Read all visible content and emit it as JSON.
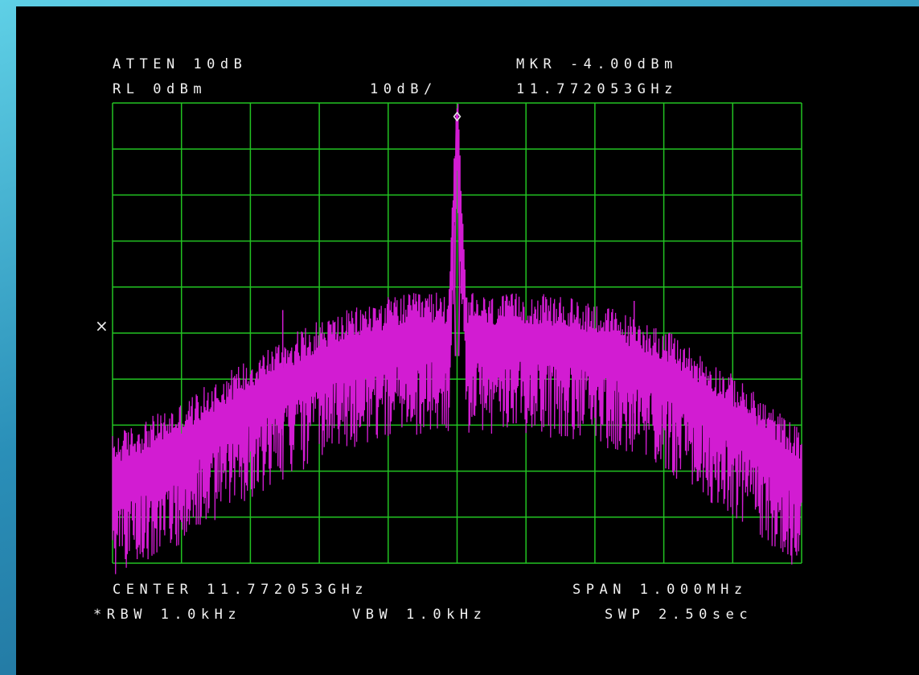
{
  "analyzer": {
    "atten": "ATTEN 10dB",
    "ref_level": "RL 0dBm",
    "scale": "10dB/",
    "marker_level": "MKR -4.00dBm",
    "marker_freq": "11.772053GHz",
    "ref_marker": "×",
    "center": "CENTER 11.772053GHz",
    "span": "SPAN 1.000MHz",
    "rbw": "*RBW 1.0kHz",
    "vbw": "VBW 1.0kHz",
    "sweep": "SWP 2.50sec"
  },
  "colors": {
    "background": "#000000",
    "grid": "#22c322",
    "trace": "#d21cd2",
    "text": "#f2f2f2",
    "marker": "#e8e8e8"
  },
  "chart_data": {
    "type": "line",
    "x_unit": "GHz",
    "y_unit": "dBm",
    "xlim": [
      11.771553,
      11.772553
    ],
    "ylim": [
      -100,
      0
    ],
    "grid": true,
    "marker": {
      "x": 11.772053,
      "y": -4.0
    },
    "spurs": [
      {
        "x": 11.7718,
        "y": -45
      },
      {
        "x": 11.77231,
        "y": -43
      },
      {
        "x": 11.77205,
        "y": -40
      }
    ],
    "series": [
      {
        "x": [
          11.771553,
          11.771653,
          11.771753,
          11.771853,
          11.771953,
          11.772003,
          11.77204,
          11.772053,
          11.772066,
          11.772103,
          11.772153,
          11.772253,
          11.772353,
          11.772453,
          11.772553
        ],
        "y": [
          -81,
          -74,
          -64,
          -56,
          -51,
          -50,
          -50,
          -4,
          -50,
          -51,
          -50,
          -52,
          -58,
          -68,
          -80
        ]
      }
    ]
  }
}
